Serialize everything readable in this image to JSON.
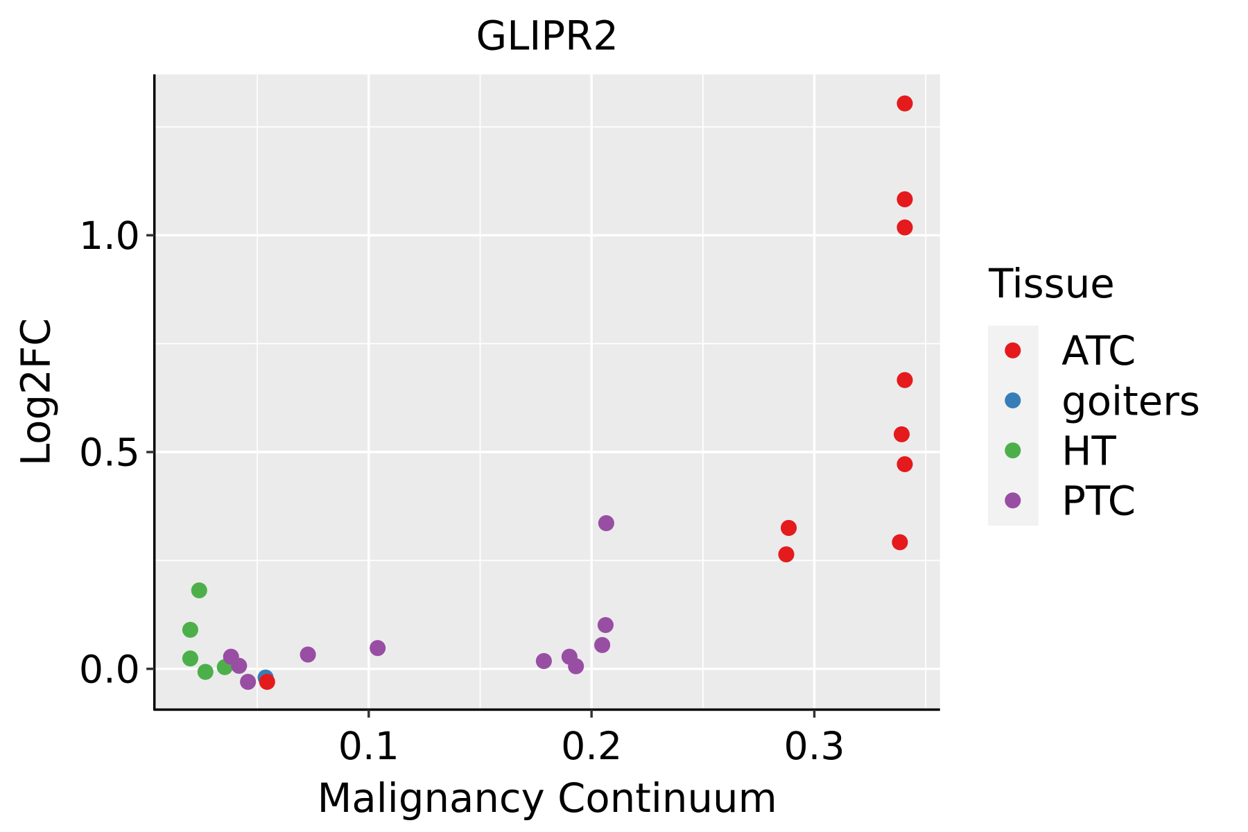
{
  "chart_data": {
    "type": "scatter",
    "title": "GLIPR2",
    "xlabel": "Malignancy Continuum",
    "ylabel": "Log2FC",
    "xlim": [
      0.0038,
      0.3564
    ],
    "ylim": [
      -0.094,
      1.371
    ],
    "xticks": [
      {
        "v": 0.1,
        "label": "0.1"
      },
      {
        "v": 0.2,
        "label": "0.2"
      },
      {
        "v": 0.3,
        "label": "0.3"
      }
    ],
    "xminor": [
      0.05,
      0.15,
      0.25,
      0.35
    ],
    "yticks": [
      {
        "v": 0.0,
        "label": "0.0"
      },
      {
        "v": 0.5,
        "label": "0.5"
      },
      {
        "v": 1.0,
        "label": "1.0"
      }
    ],
    "yminor": [
      0.25,
      0.75,
      1.25
    ],
    "grid": true,
    "legend": {
      "title": "Tissue",
      "placement": "right"
    },
    "series": [
      {
        "name": "ATC",
        "color": "#E41A1C",
        "points": [
          [
            0.3406,
            1.304
          ],
          [
            0.3406,
            1.083
          ],
          [
            0.3406,
            1.018
          ],
          [
            0.3406,
            0.666
          ],
          [
            0.3392,
            0.541
          ],
          [
            0.3406,
            0.472
          ],
          [
            0.3384,
            0.292
          ],
          [
            0.2885,
            0.325
          ],
          [
            0.2874,
            0.264
          ]
        ]
      },
      {
        "name": "goiters",
        "color": "#377EB8",
        "points": [
          [
            0.0537,
            -0.02
          ]
        ]
      },
      {
        "name": "HT",
        "color": "#4DAF4A",
        "points": [
          [
            0.0239,
            0.181
          ],
          [
            0.0199,
            0.09
          ],
          [
            0.0199,
            0.024
          ],
          [
            0.0267,
            -0.007
          ],
          [
            0.0354,
            0.004
          ]
        ]
      },
      {
        "name": "PTC",
        "color": "#984EA3",
        "points": [
          [
            0.0382,
            0.028
          ],
          [
            0.0418,
            0.007
          ],
          [
            0.0458,
            -0.03
          ],
          [
            0.0727,
            0.033
          ],
          [
            0.104,
            0.048
          ],
          [
            0.1786,
            0.018
          ],
          [
            0.1901,
            0.028
          ],
          [
            0.193,
            0.006
          ],
          [
            0.2048,
            0.055
          ],
          [
            0.2063,
            0.101
          ],
          [
            0.2066,
            0.336
          ]
        ]
      }
    ],
    "extra_points": [
      {
        "series": "ATC",
        "point": [
          0.0544,
          -0.03
        ]
      }
    ]
  }
}
